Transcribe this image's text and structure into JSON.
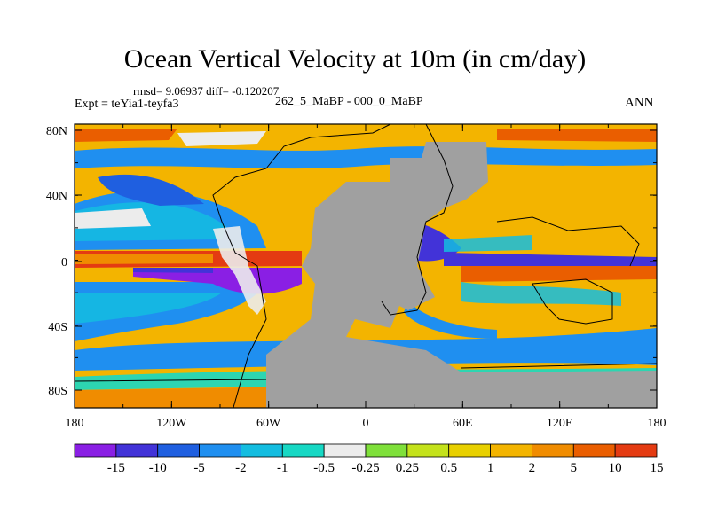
{
  "title": "Ocean Vertical Velocity at 10m (in cm/day)",
  "stats_line": "rmsd= 9.06937 diff= -0.120207",
  "experiment": "Expt = teYia1-teyfa3",
  "comparison": "262_5_MaBP - 000_0_MaBP",
  "season": "ANN",
  "lat_ticks": [
    "80N",
    "40N",
    "0",
    "40S",
    "80S"
  ],
  "lon_ticks": [
    "180",
    "120W",
    "60W",
    "0",
    "60E",
    "120E",
    "180"
  ],
  "colorbar": {
    "labels": [
      "-15",
      "-10",
      "-5",
      "-2",
      "-1",
      "-0.5",
      "-0.25",
      "0.25",
      "0.5",
      "1",
      "2",
      "5",
      "10",
      "15"
    ],
    "colors": [
      "#8a1fe4",
      "#4233d8",
      "#1f5fe0",
      "#1f8ff0",
      "#14bde0",
      "#17d8c4",
      "#ececec",
      "#7fe03a",
      "#c4e21b",
      "#e8d000",
      "#f3b400",
      "#f08c00",
      "#ea5e00",
      "#e43b12"
    ]
  },
  "colors": {
    "land": "#a0a0a0"
  }
}
